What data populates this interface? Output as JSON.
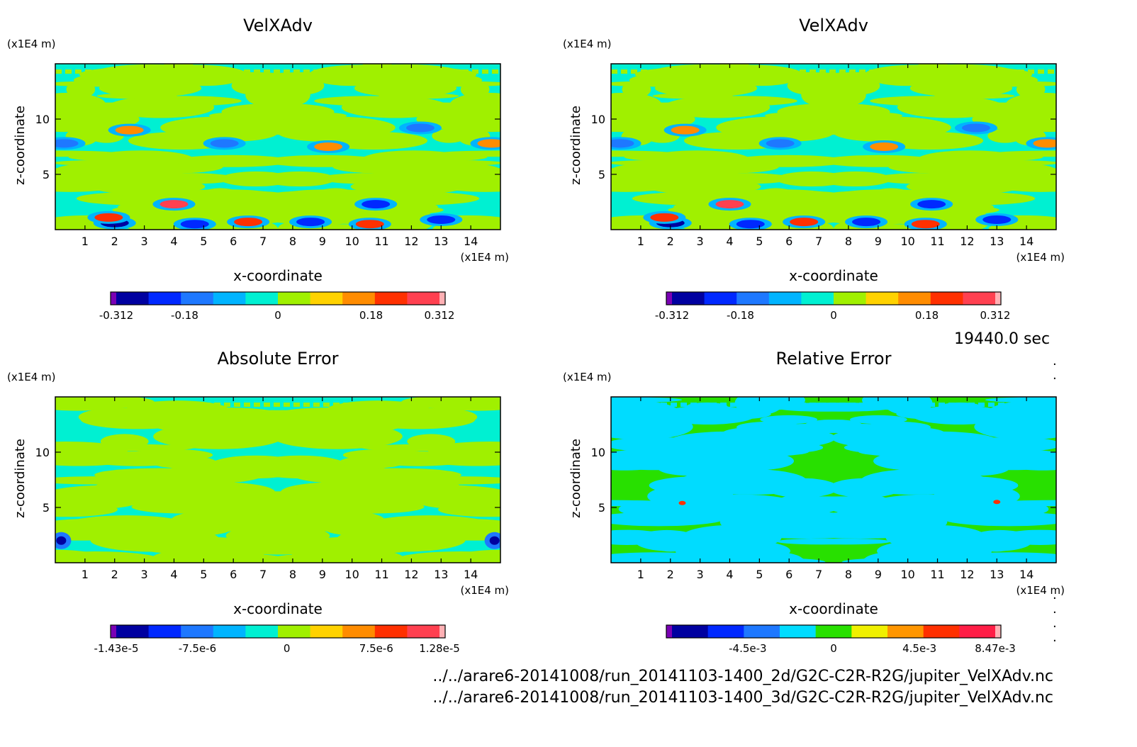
{
  "timestamp": "19440.0 sec",
  "footer_lines": [
    "../../arare6-20141008/run_20141103-1400_2d/G2C-C2R-R2G/jupiter_VelXAdv.nc",
    "../../arare6-20141008/run_20141103-1400_3d/G2C-C2R-R2G/jupiter_VelXAdv.nc"
  ],
  "chart_data": [
    {
      "type": "heatmap",
      "title": "VelXAdv",
      "xlabel": "x-coordinate",
      "ylabel": "z-coordinate",
      "x_unit": "(x1E4 m)",
      "y_unit": "(x1E4 m)",
      "xlim": [
        0,
        15
      ],
      "ylim": [
        0,
        15
      ],
      "x_ticks": [
        "1",
        "2",
        "3",
        "4",
        "5",
        "6",
        "7",
        "8",
        "9",
        "10",
        "11",
        "12",
        "13",
        "14"
      ],
      "y_ticks": [
        "5",
        "10"
      ],
      "colorbar": {
        "colors": [
          "#7a00b4",
          "#0000a0",
          "#0028ff",
          "#1e78ff",
          "#00b4ff",
          "#00f0d2",
          "#a0f000",
          "#ffd200",
          "#ff8c00",
          "#ff3000",
          "#ff4050",
          "#ffb0b4"
        ],
        "tick_labels": [
          "-0.312",
          "-0.18",
          "0",
          "0.18",
          "0.312"
        ],
        "range": [
          -0.312,
          0.312
        ]
      },
      "field_style": "A"
    },
    {
      "type": "heatmap",
      "title": "VelXAdv",
      "xlabel": "x-coordinate",
      "ylabel": "z-coordinate",
      "x_unit": "(x1E4 m)",
      "y_unit": "(x1E4 m)",
      "xlim": [
        0,
        15
      ],
      "ylim": [
        0,
        15
      ],
      "x_ticks": [
        "1",
        "2",
        "3",
        "4",
        "5",
        "6",
        "7",
        "8",
        "9",
        "10",
        "11",
        "12",
        "13",
        "14"
      ],
      "y_ticks": [
        "5",
        "10"
      ],
      "colorbar": {
        "colors": [
          "#7a00b4",
          "#0000a0",
          "#0028ff",
          "#1e78ff",
          "#00b4ff",
          "#00f0d2",
          "#a0f000",
          "#ffd200",
          "#ff8c00",
          "#ff3000",
          "#ff4050",
          "#ffb0b4"
        ],
        "tick_labels": [
          "-0.312",
          "-0.18",
          "0",
          "0.18",
          "0.312"
        ],
        "range": [
          -0.312,
          0.312
        ]
      },
      "field_style": "A"
    },
    {
      "type": "heatmap",
      "title": "Absolute Error",
      "xlabel": "x-coordinate",
      "ylabel": "z-coordinate",
      "x_unit": "(x1E4 m)",
      "y_unit": "(x1E4 m)",
      "xlim": [
        0,
        15
      ],
      "ylim": [
        0,
        15
      ],
      "x_ticks": [
        "1",
        "2",
        "3",
        "4",
        "5",
        "6",
        "7",
        "8",
        "9",
        "10",
        "11",
        "12",
        "13",
        "14"
      ],
      "y_ticks": [
        "5",
        "10"
      ],
      "colorbar": {
        "colors": [
          "#7a00b4",
          "#0000a0",
          "#0028ff",
          "#1e78ff",
          "#00b4ff",
          "#00f0d2",
          "#a0f000",
          "#ffd200",
          "#ff8c00",
          "#ff3000",
          "#ff4050",
          "#ffb0b4"
        ],
        "tick_labels": [
          "-1.43e-5",
          "-7.5e-6",
          "0",
          "7.5e-6",
          "1.28e-5"
        ],
        "range": [
          -1.43e-05,
          1.28e-05
        ]
      },
      "field_style": "B"
    },
    {
      "type": "heatmap",
      "title": "Relative Error",
      "xlabel": "x-coordinate",
      "ylabel": "z-coordinate",
      "x_unit": "(x1E4 m)",
      "y_unit": "(x1E4 m)",
      "xlim": [
        0,
        15
      ],
      "ylim": [
        0,
        15
      ],
      "x_ticks": [
        "1",
        "2",
        "3",
        "4",
        "5",
        "6",
        "7",
        "8",
        "9",
        "10",
        "11",
        "12",
        "13",
        "14"
      ],
      "y_ticks": [
        "5",
        "10"
      ],
      "colorbar": {
        "colors": [
          "#7a00b4",
          "#0000a0",
          "#0028ff",
          "#1e78ff",
          "#00dcff",
          "#28e000",
          "#f0f000",
          "#ff9600",
          "#ff3000",
          "#ff1e46",
          "#ffb0b4"
        ],
        "tick_labels": [
          "-4.5e-3",
          "0",
          "4.5e-3",
          "8.47e-3"
        ],
        "range": [
          -0.00847,
          0.00847
        ]
      },
      "field_style": "C"
    }
  ]
}
